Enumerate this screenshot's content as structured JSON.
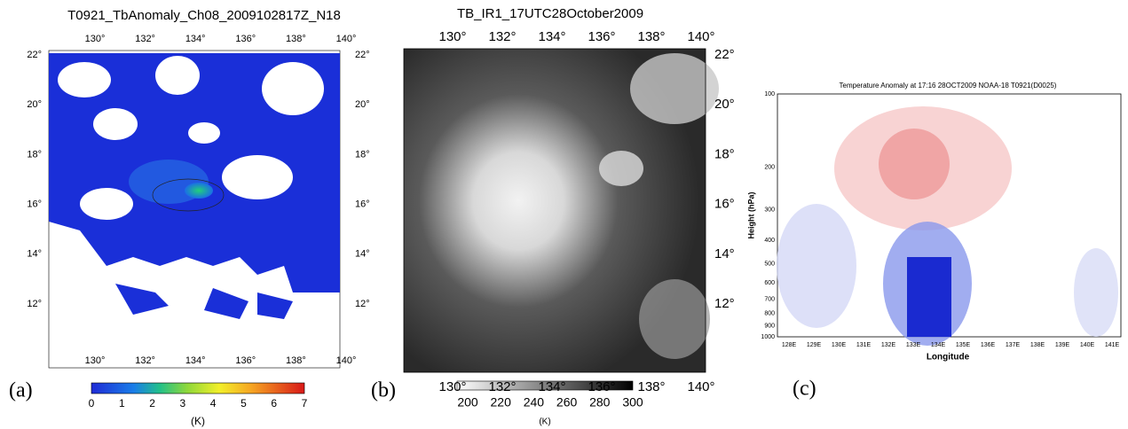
{
  "panels": [
    {
      "label": "(a)",
      "title": "T0921_TbAnomaly_Ch08_2009102817Z_N18",
      "x_ticks": [
        "130°",
        "132°",
        "134°",
        "136°",
        "138°",
        "140°"
      ],
      "y_ticks": [
        "22°",
        "20°",
        "18°",
        "16°",
        "14°",
        "12°"
      ],
      "colorbar": {
        "ticks": [
          "0",
          "1",
          "2",
          "3",
          "4",
          "5",
          "6",
          "7"
        ],
        "unit": "(K)"
      }
    },
    {
      "label": "(b)",
      "title": "TB_IR1_17UTC28October2009",
      "x_ticks": [
        "130°",
        "132°",
        "134°",
        "136°",
        "138°",
        "140°"
      ],
      "y_ticks": [
        "22°",
        "20°",
        "18°",
        "16°",
        "14°",
        "12°"
      ],
      "colorbar": {
        "ticks": [
          "200",
          "220",
          "240",
          "260",
          "280",
          "300"
        ],
        "unit": "(K)"
      }
    },
    {
      "label": "(c)",
      "title": "Temperature Anomaly at 17:16 28OCT2009 NOAA-18 T0921(D0025)",
      "x_axis_label": "Longitude",
      "y_axis_label": "Height (hPa)",
      "x_ticks": [
        "128E",
        "129E",
        "130E",
        "131E",
        "132E",
        "133E",
        "134E",
        "135E",
        "136E",
        "137E",
        "138E",
        "139E",
        "140E",
        "141E"
      ],
      "y_ticks": [
        "100",
        "200",
        "300",
        "400",
        "500",
        "600",
        "700",
        "800",
        "900",
        "1000"
      ]
    }
  ]
}
